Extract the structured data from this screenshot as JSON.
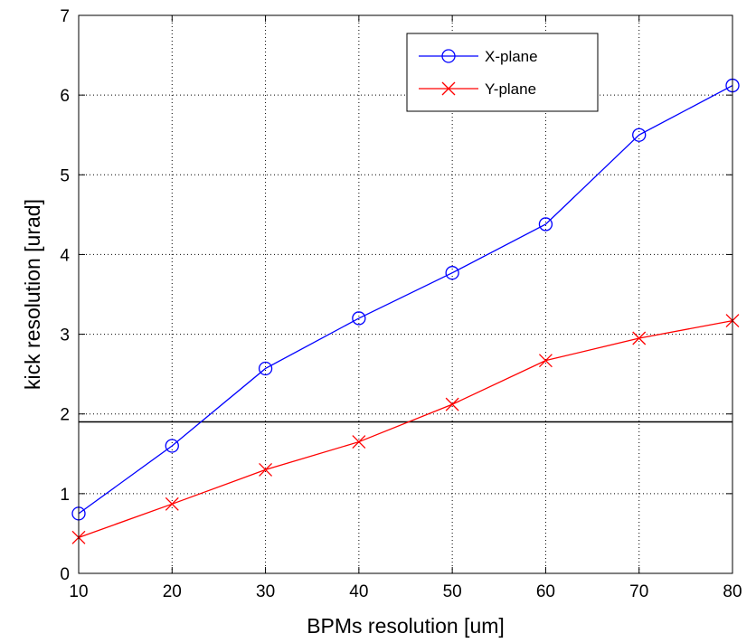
{
  "chart_data": {
    "type": "line",
    "title": "",
    "xlabel": "BPMs resolution [um]",
    "ylabel": "kick resolution [urad]",
    "xlim": [
      10,
      80
    ],
    "ylim": [
      0,
      7
    ],
    "xticks": [
      10,
      20,
      30,
      40,
      50,
      60,
      70,
      80
    ],
    "yticks": [
      0,
      1,
      2,
      3,
      4,
      5,
      6,
      7
    ],
    "grid": true,
    "legend_position": "top-right",
    "reference_line_y": 1.9,
    "reference_line_color": "#000000",
    "x": [
      10,
      20,
      30,
      40,
      50,
      60,
      70,
      80
    ],
    "series": [
      {
        "name": "X-plane",
        "color": "#0000ff",
        "marker": "circle",
        "values": [
          0.75,
          1.6,
          2.57,
          3.2,
          3.77,
          4.38,
          5.5,
          6.12
        ]
      },
      {
        "name": "Y-plane",
        "color": "#ff0000",
        "marker": "x",
        "values": [
          0.45,
          0.87,
          1.3,
          1.65,
          2.12,
          2.67,
          2.95,
          3.17
        ]
      }
    ]
  }
}
